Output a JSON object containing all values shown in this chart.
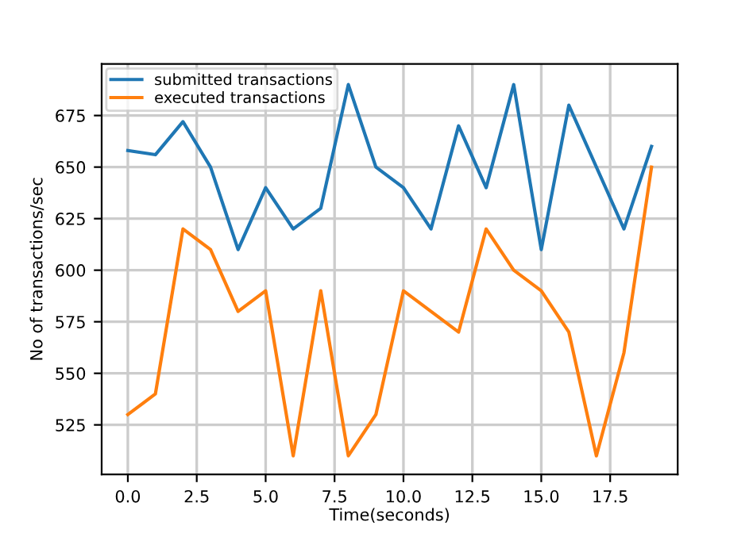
{
  "chart_data": {
    "type": "line",
    "xlabel": "Time(seconds)",
    "ylabel": "No of transactions/sec",
    "x": [
      0,
      1,
      2,
      3,
      4,
      5,
      6,
      7,
      8,
      9,
      10,
      11,
      12,
      13,
      14,
      15,
      16,
      17,
      18,
      19
    ],
    "series": [
      {
        "name": "submitted transactions",
        "color": "#1f77b4",
        "values": [
          658,
          656,
          672,
          650,
          610,
          640,
          620,
          630,
          690,
          650,
          640,
          620,
          670,
          640,
          690,
          610,
          680,
          650,
          620,
          660
        ]
      },
      {
        "name": "executed transactions",
        "color": "#ff7f0e",
        "values": [
          530,
          540,
          620,
          610,
          580,
          590,
          510,
          590,
          510,
          530,
          590,
          580,
          570,
          620,
          600,
          590,
          570,
          510,
          560,
          650
        ]
      }
    ],
    "xlim": [
      -0.95,
      19.95
    ],
    "xticks": [
      {
        "value": 0,
        "label": "0.0"
      },
      {
        "value": 2.5,
        "label": "2.5"
      },
      {
        "value": 5,
        "label": "5.0"
      },
      {
        "value": 7.5,
        "label": "7.5"
      },
      {
        "value": 10,
        "label": "10.0"
      },
      {
        "value": 12.5,
        "label": "12.5"
      },
      {
        "value": 15,
        "label": "15.0"
      },
      {
        "value": 17.5,
        "label": "17.5"
      }
    ],
    "ylim": [
      501,
      700
    ],
    "yticks": [
      525,
      550,
      575,
      600,
      625,
      650,
      675
    ],
    "grid": true,
    "legend": "top left",
    "marker": "none",
    "line_style": "solid"
  }
}
